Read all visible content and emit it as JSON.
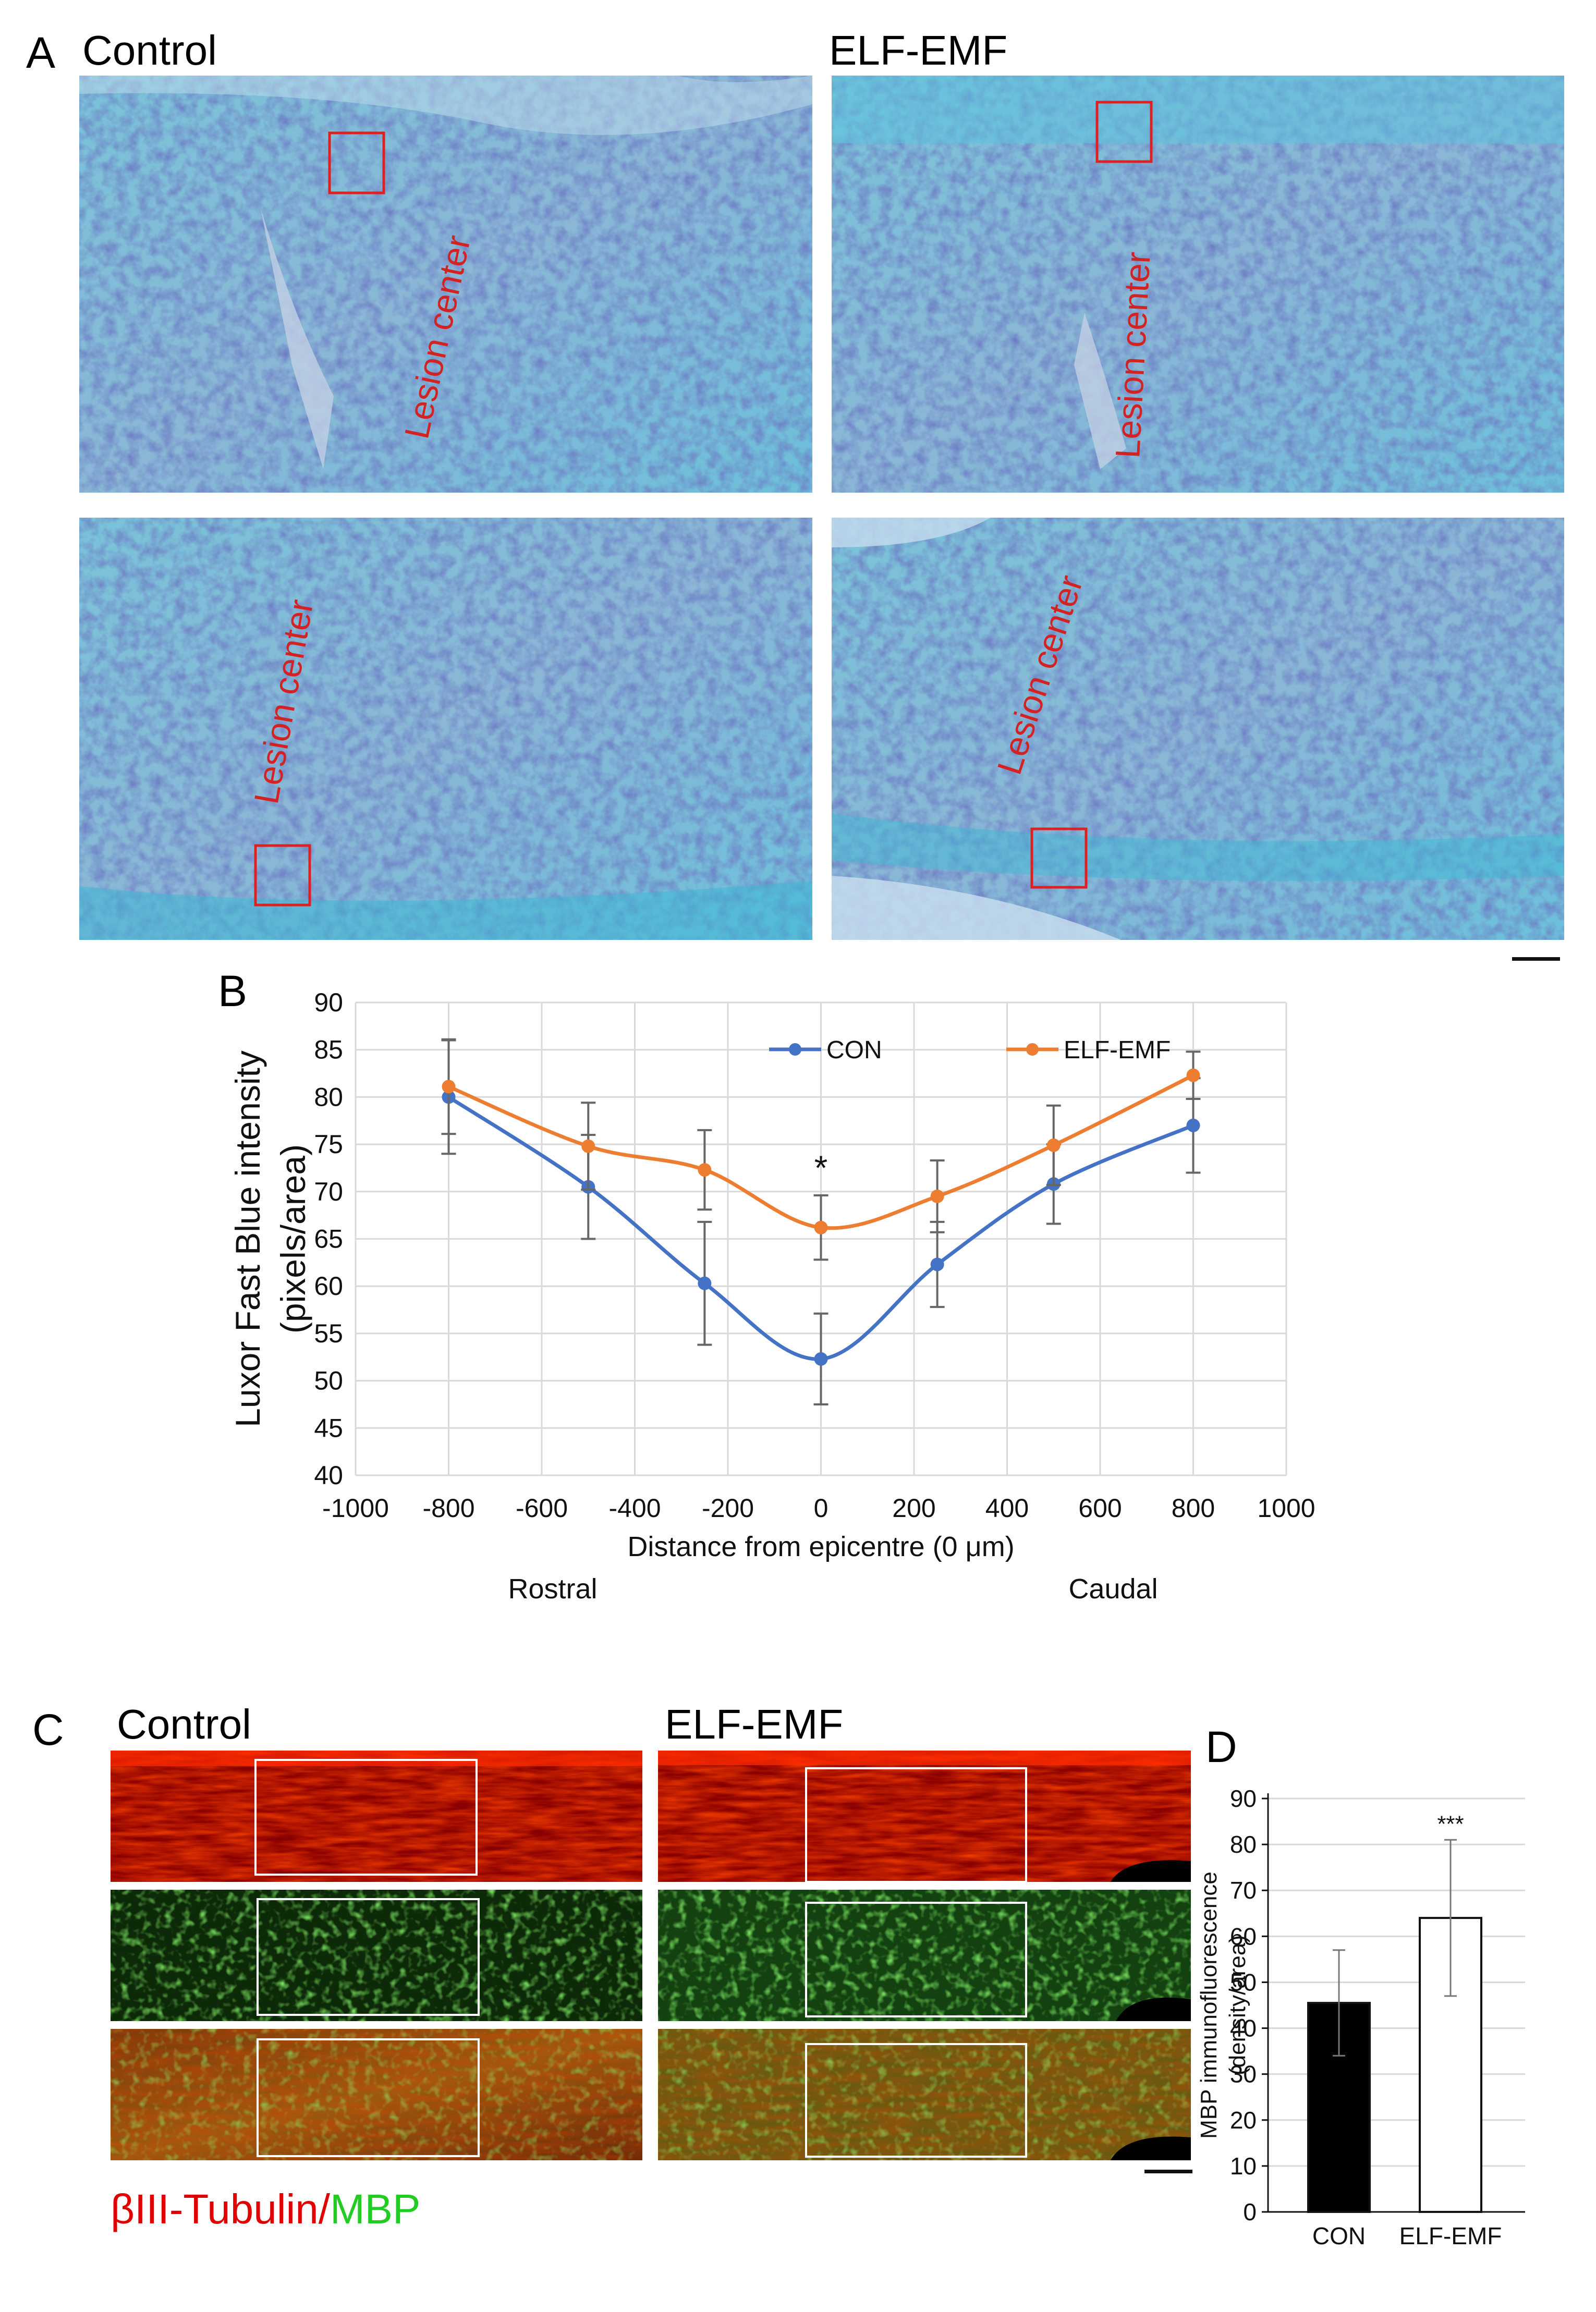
{
  "panel_letters": {
    "a": "A",
    "b": "B",
    "c": "C",
    "d": "D"
  },
  "panel_a": {
    "col_titles": [
      "Control",
      "ELF-EMF"
    ],
    "lesion_label": "Lesion center"
  },
  "panel_c": {
    "col_titles": [
      "Control",
      "ELF-EMF"
    ],
    "stain_red": "βIII-Tubulin",
    "stain_sep": "/",
    "stain_green": "MBP"
  },
  "colors": {
    "con_line": "#4472c4",
    "elf_line": "#ed7d31",
    "lfb_stain": "#5fb8d6",
    "box_red": "#e02020",
    "tubulin_red": "#e00000",
    "mbp_green": "#22cc22",
    "bar_con": "#000000",
    "bar_elf": "#ffffff"
  },
  "chart_data": [
    {
      "type": "line",
      "panel": "B",
      "title": "",
      "xlabel": "Distance from epicentre (0 μm)",
      "ylabel": "Luxor Fast Blue intensity\n(pixels/area)",
      "xlim": [
        -1000,
        1000
      ],
      "ylim": [
        40,
        90
      ],
      "x_ticks": [
        -1000,
        -800,
        -600,
        -400,
        -200,
        0,
        200,
        400,
        600,
        800,
        1000
      ],
      "y_ticks": [
        40,
        45,
        50,
        55,
        60,
        65,
        70,
        75,
        80,
        85,
        90
      ],
      "x_region_labels": [
        "Rostral",
        "Caudal"
      ],
      "grid": true,
      "legend_position": "top-right",
      "x": [
        -800,
        -500,
        -250,
        0,
        250,
        500,
        800
      ],
      "series": [
        {
          "name": "CON",
          "values": [
            80,
            70.5,
            60.3,
            52.3,
            62.3,
            70.8,
            77
          ],
          "errors": [
            6,
            5.5,
            6.5,
            4.8,
            4.5,
            4.2,
            5
          ]
        },
        {
          "name": "ELF-EMF",
          "values": [
            81.1,
            74.8,
            72.3,
            66.2,
            69.5,
            74.9,
            82.3
          ],
          "errors": [
            5,
            4.6,
            4.2,
            3.4,
            3.8,
            4.2,
            2.5
          ]
        }
      ],
      "annotations": [
        {
          "x": 0,
          "text": "*"
        }
      ]
    },
    {
      "type": "bar",
      "panel": "D",
      "title": "",
      "xlabel": "",
      "ylabel": "MBP immunofluorescence\n(density/area)",
      "categories": [
        "CON",
        "ELF-EMF"
      ],
      "values": [
        45.5,
        64
      ],
      "errors": [
        11.5,
        17
      ],
      "ylim": [
        0,
        90
      ],
      "y_ticks": [
        0,
        10,
        20,
        30,
        40,
        50,
        60,
        70,
        80,
        90
      ],
      "grid": true,
      "annotations": [
        {
          "category": "ELF-EMF",
          "text": "***"
        }
      ]
    }
  ]
}
